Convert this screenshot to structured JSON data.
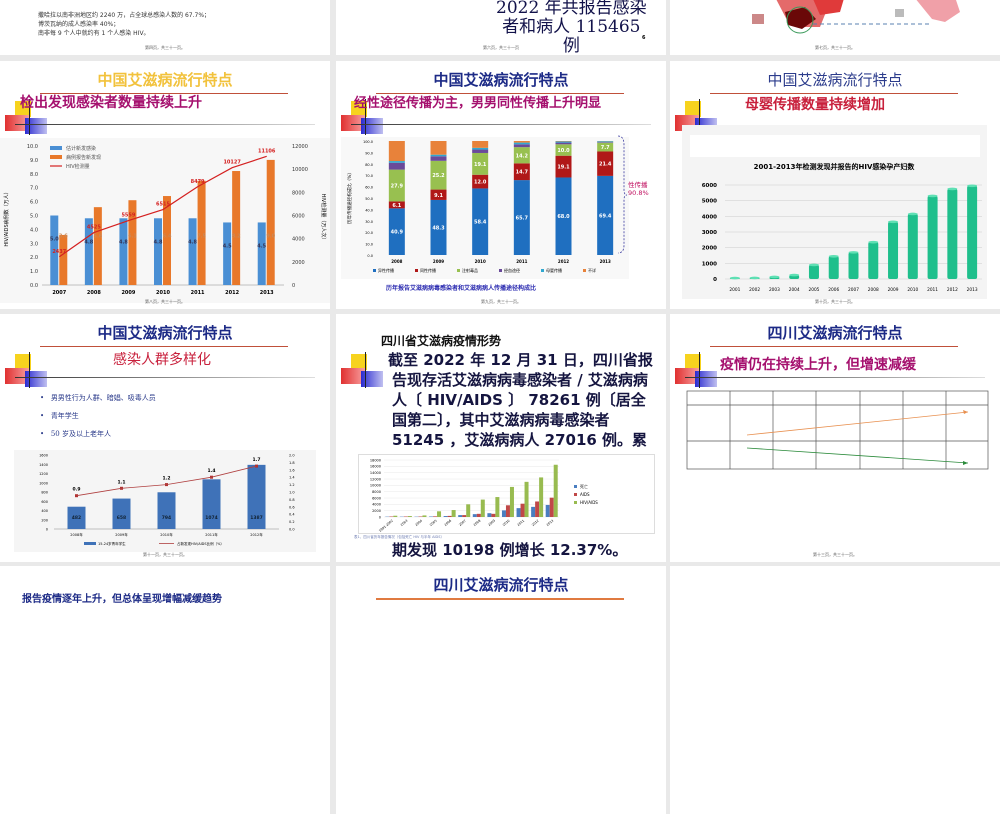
{
  "slides": [
    {
      "footer": "第四页，共三十一页。",
      "lines": [
        "撒哈拉以南非洲地区约 2240 万，占全球总感染人数的 67.7%；",
        "博茨瓦纳的成人感染率 40%；",
        "南非每 9 个人中就约有 1 个人感染 HIV。"
      ]
    },
    {
      "footer": "第六页，共三十一页",
      "lines": [
        "2022 年共报告感染",
        "者和病人 115465",
        "例"
      ],
      "page_number": "6"
    },
    {
      "footer": "第七页，共三十一页。"
    },
    {
      "footer": "第八页，共三十一页。",
      "title": "中国艾滋病流行特点",
      "subtitle": "检出发现感染者数量持续上升"
    },
    {
      "footer": "第九页，共三十一页。",
      "title": "中国艾滋病流行特点",
      "subtitle": "经性途径传播为主，男男同性传播上升明显",
      "brace_label": [
        "性传播",
        "90.8%"
      ],
      "caption": "历年报告艾滋病病毒感染者和艾滋病病人传播途径构成比"
    },
    {
      "footer": "第十页，共三十一页。",
      "title": "中国艾滋病流行特点",
      "subtitle": "母婴传播数量持续增加"
    },
    {
      "footer": "第十一页，共三十一页。",
      "title": "中国艾滋病流行特点",
      "subtitle": "感染人群多样化",
      "bullets": [
        "男男性行为人群、暗娼、吸毒人员",
        "青年学生",
        "50 岁及以上老年人"
      ]
    },
    {
      "heading": "四川省艾滋病疫情形势",
      "body": [
        "截至 2022 年 12 月 31 日，四川省报",
        "告现存活艾滋病病毒感染者 / 艾滋病病",
        "人〔 HIV/AIDS 〕 78261 例〔居全",
        "国第二〕，其中艾滋病病毒感染者",
        "51245 ，艾滋病病人 27016 例。累"
      ],
      "body_last": "期发现 10198 例增长 12.37%。",
      "caption": "表1、四川省历年报告情况（包括死亡 HIV 与半年 AIDS）"
    },
    {
      "footer": "第十三页，共三十一页。",
      "title": "四川艾滋病流行特点",
      "subtitle": "疫情仍在持续上升，但增速减缓"
    },
    {
      "text": "报告疫情逐年上升，但总体呈现增幅减缓趋势"
    },
    {
      "title": "四川艾滋病流行特点"
    },
    {}
  ],
  "colors": {
    "title_yellow": "#f2c23c",
    "title_navy": "#1c2a86",
    "subtitle_magenta": "#a5106e",
    "subtitle_red": "#c8203c",
    "bar_blue": "#4a8fd4",
    "bar_orange": "#e8782a",
    "line_red": "#d42020",
    "teal": "#1fbf8c"
  },
  "chart_data": [
    {
      "type": "bar+line",
      "categories": [
        "2007",
        "2008",
        "2009",
        "2010",
        "2011",
        "2012",
        "2013"
      ],
      "series": [
        {
          "name": "估计新发感染",
          "values": [
            5.0,
            4.8,
            4.8,
            4.8,
            4.8,
            4.5,
            4.5
          ],
          "axis": "left"
        },
        {
          "name": "病例报告新发现",
          "values": [
            3.6,
            5.6,
            6.1,
            6.4,
            7.5,
            8.2,
            9.0
          ],
          "axis": "left"
        },
        {
          "name": "HIV检测量",
          "values": [
            2437,
            4525,
            5559,
            6515,
            8479,
            10127,
            11106
          ],
          "axis": "right"
        }
      ],
      "ylabel": "HIV/AIDS病例数（万人）",
      "y2label": "HIV检测量（万人次）",
      "ylim": [
        0,
        10
      ],
      "y2lim": [
        0,
        12000
      ],
      "yticks": [
        "0.0",
        "1.0",
        "2.0",
        "3.0",
        "4.0",
        "5.0",
        "6.0",
        "7.0",
        "8.0",
        "9.0",
        "10.0"
      ],
      "y2ticks": [
        "0",
        "2000",
        "4000",
        "6000",
        "8000",
        "10000",
        "12000"
      ],
      "legend": "top-left"
    },
    {
      "type": "stacked-bar",
      "categories": [
        "2008",
        "2009",
        "2010",
        "2011",
        "2012",
        "2013"
      ],
      "series": [
        {
          "name": "异性传播",
          "values": [
            40.9,
            48.3,
            58.4,
            65.7,
            68.0,
            69.4
          ]
        },
        {
          "name": "同性传播",
          "values": [
            6.1,
            9.1,
            12.0,
            14.7,
            19.1,
            21.4
          ]
        },
        {
          "name": "注射毒品",
          "values": [
            27.9,
            25.2,
            19.1,
            14.2,
            10.0,
            7.7
          ]
        },
        {
          "name": "经血途径",
          "values": [
            6.0,
            4.0,
            3.0,
            2.5,
            1.5,
            0.5
          ]
        },
        {
          "name": "母婴传播",
          "values": [
            1.5,
            1.4,
            1.5,
            1.5,
            1.0,
            0.8
          ]
        },
        {
          "name": "不详",
          "values": [
            17.6,
            12.0,
            6.0,
            1.4,
            0.4,
            0.2
          ]
        }
      ],
      "ylabel": "历年传播途径构成比（%）",
      "ylim": [
        0,
        100
      ],
      "yticks": [
        "0.0",
        "10.0",
        "20.0",
        "30.0",
        "40.0",
        "50.0",
        "60.0",
        "70.0",
        "80.0",
        "90.0",
        "100.0"
      ],
      "legend": "bottom"
    },
    {
      "type": "bar",
      "title": "2001-2013年检测发现并报告的HIV感染孕产妇数",
      "categories": [
        "2001",
        "2002",
        "2003",
        "2004",
        "2005",
        "2006",
        "2007",
        "2008",
        "2009",
        "2010",
        "2011",
        "2012",
        "2013"
      ],
      "values": [
        60,
        70,
        130,
        250,
        900,
        1450,
        1700,
        2350,
        3650,
        4150,
        5300,
        5750,
        5950
      ],
      "ylim": [
        0,
        6000
      ],
      "yticks": [
        "0",
        "1000",
        "2000",
        "3000",
        "4000",
        "5000",
        "6000"
      ]
    },
    {
      "type": "bar+line",
      "categories": [
        "2008年",
        "2009年",
        "2010年",
        "2011年",
        "2012年"
      ],
      "series": [
        {
          "name": "15-24岁青年学生",
          "values": [
            482,
            658,
            794,
            1074,
            1387
          ],
          "axis": "left"
        },
        {
          "name": "占新发现HIV/AIDS比例（%）",
          "values": [
            0.9,
            1.1,
            1.2,
            1.4,
            1.7
          ],
          "axis": "right"
        }
      ],
      "ylim": [
        0,
        1600
      ],
      "y2lim": [
        0,
        2.0
      ],
      "yticks": [
        "0",
        "200",
        "400",
        "600",
        "800",
        "1000",
        "1200",
        "1400",
        "1600"
      ],
      "y2ticks": [
        "0.0",
        "0.2",
        "0.4",
        "0.6",
        "0.8",
        "1.0",
        "1.2",
        "1.4",
        "1.6",
        "1.8",
        "2.0"
      ],
      "legend": "bottom"
    },
    {
      "type": "grouped-bar",
      "categories": [
        "1991-2002",
        "2003",
        "2004",
        "2005",
        "2006",
        "2007",
        "2008",
        "2009",
        "2010",
        "2011",
        "2012",
        "2013"
      ],
      "series": [
        {
          "name": "死亡",
          "values": [
            100,
            100,
            100,
            150,
            300,
            600,
            900,
            1200,
            2100,
            2800,
            3200,
            3800
          ]
        },
        {
          "name": "AIDS",
          "values": [
            150,
            150,
            150,
            200,
            350,
            600,
            1000,
            1000,
            3700,
            4200,
            4900,
            6100
          ]
        },
        {
          "name": "HIV/AIDS",
          "values": [
            400,
            300,
            500,
            1800,
            2200,
            4000,
            5500,
            6300,
            9500,
            11100,
            12500,
            16500
          ]
        }
      ],
      "ylim": [
        0,
        18000
      ],
      "yticks": [
        "0",
        "2000",
        "4000",
        "6000",
        "8000",
        "10000",
        "12000",
        "14000",
        "16000",
        "18000"
      ],
      "legend": "right"
    }
  ]
}
